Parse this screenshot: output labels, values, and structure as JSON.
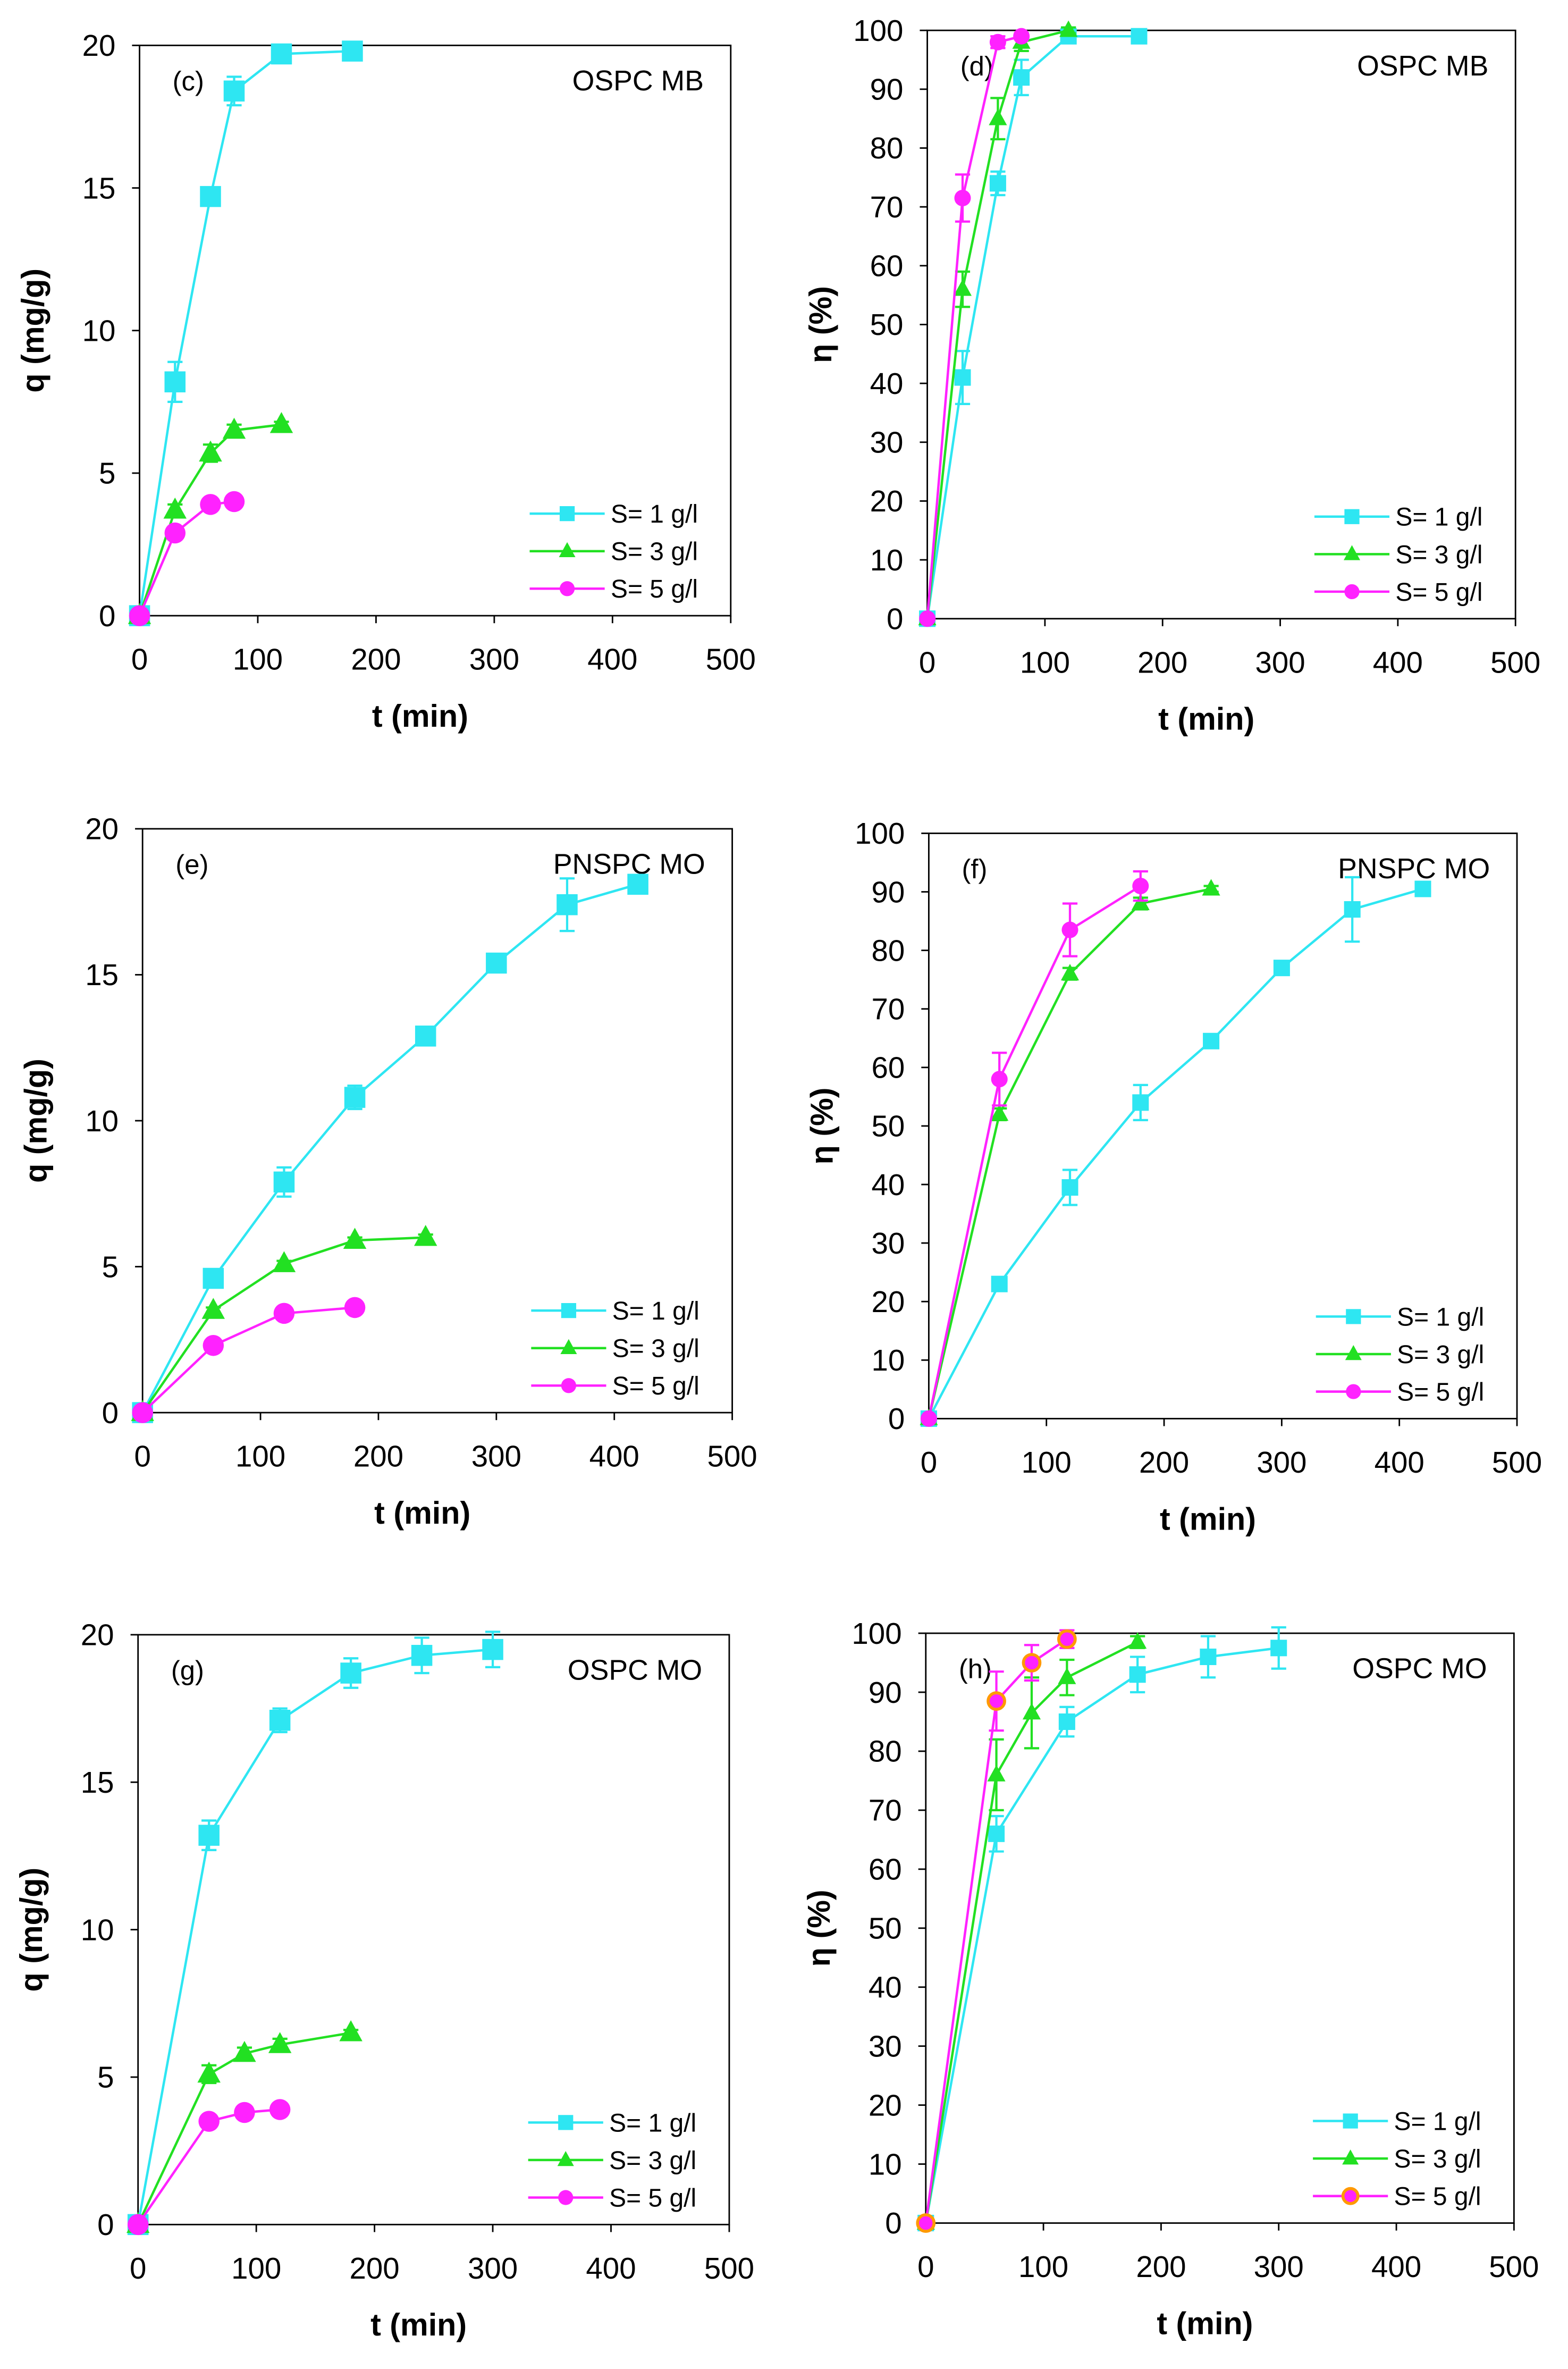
{
  "chart_data": [
    {
      "type": "line",
      "panel": "(c)",
      "title": "OSPC MB",
      "xlabel": "t (min)",
      "ylabel": "q (mg/g)",
      "xlim": [
        0,
        500
      ],
      "ylim": [
        0,
        20
      ],
      "xticks": [
        0,
        100,
        200,
        300,
        400,
        500
      ],
      "yticks": [
        0,
        5,
        10,
        15,
        20
      ],
      "legend": "bottom-right",
      "series": [
        {
          "name": "S= 1 g/l",
          "marker": "square",
          "color": "#2EE6F2",
          "x": [
            0,
            30,
            60,
            80,
            120,
            180
          ],
          "y": [
            0,
            8.2,
            14.7,
            18.4,
            19.7,
            19.8
          ],
          "err": [
            0,
            0.7,
            0.3,
            0.5,
            0.2,
            0.1
          ]
        },
        {
          "name": "S= 3 g/l",
          "marker": "triangle",
          "color": "#22E022",
          "x": [
            0,
            30,
            60,
            80,
            120
          ],
          "y": [
            0,
            3.7,
            5.7,
            6.5,
            6.7
          ],
          "err": [
            0,
            0.2,
            0.3,
            0.2,
            0.1
          ]
        },
        {
          "name": "S= 5 g/l",
          "marker": "circle",
          "color": "#FF22FF",
          "x": [
            0,
            30,
            60,
            80
          ],
          "y": [
            0,
            2.9,
            3.9,
            4.0
          ],
          "err": [
            0,
            0.1,
            0.1,
            0.1
          ]
        }
      ]
    },
    {
      "type": "line",
      "panel": "(d)",
      "title": "OSPC MB",
      "xlabel": "t (min)",
      "ylabel": "η (%)",
      "xlim": [
        0,
        500
      ],
      "ylim": [
        0,
        100
      ],
      "xticks": [
        0,
        100,
        200,
        300,
        400,
        500
      ],
      "yticks": [
        0,
        10,
        20,
        30,
        40,
        50,
        60,
        70,
        80,
        90,
        100
      ],
      "legend": "bottom-right",
      "series": [
        {
          "name": "S= 1 g/l",
          "marker": "square",
          "color": "#2EE6F2",
          "x": [
            0,
            30,
            60,
            80,
            120,
            180
          ],
          "y": [
            0,
            41,
            74,
            92,
            99,
            99
          ],
          "err": [
            0,
            4.5,
            2,
            3,
            1,
            0.5
          ]
        },
        {
          "name": "S= 3 g/l",
          "marker": "triangle",
          "color": "#22E022",
          "x": [
            0,
            30,
            60,
            80,
            120
          ],
          "y": [
            0,
            56,
            85,
            98,
            100
          ],
          "err": [
            0,
            3,
            3.5,
            1.5,
            0.5
          ]
        },
        {
          "name": "S= 5 g/l",
          "marker": "circle",
          "color": "#FF22FF",
          "x": [
            0,
            30,
            60,
            80
          ],
          "y": [
            0,
            71.5,
            98,
            99
          ],
          "err": [
            0,
            4,
            1,
            0.5
          ]
        }
      ]
    },
    {
      "type": "line",
      "panel": "(e)",
      "title": "PNSPC MO",
      "xlabel": "t (min)",
      "ylabel": "q (mg/g)",
      "xlim": [
        0,
        500
      ],
      "ylim": [
        0,
        20
      ],
      "xticks": [
        0,
        100,
        200,
        300,
        400,
        500
      ],
      "yticks": [
        0,
        5,
        10,
        15,
        20
      ],
      "legend": "bottom-right",
      "series": [
        {
          "name": "S= 1 g/l",
          "marker": "square",
          "color": "#2EE6F2",
          "x": [
            0,
            60,
            120,
            180,
            240,
            300,
            360,
            420
          ],
          "y": [
            0,
            4.6,
            7.9,
            10.8,
            12.9,
            15.4,
            17.4,
            18.1
          ],
          "err": [
            0,
            0.2,
            0.5,
            0.4,
            0.1,
            0.1,
            0.9,
            0.1
          ]
        },
        {
          "name": "S= 3 g/l",
          "marker": "triangle",
          "color": "#22E022",
          "x": [
            0,
            60,
            120,
            180,
            240
          ],
          "y": [
            0,
            3.5,
            5.1,
            5.9,
            6.0
          ],
          "err": [
            0,
            0.1,
            0.1,
            0.1,
            0.1
          ]
        },
        {
          "name": "S= 5 g/l",
          "marker": "circle",
          "color": "#FF22FF",
          "x": [
            0,
            60,
            120,
            180
          ],
          "y": [
            0,
            2.3,
            3.4,
            3.6
          ],
          "err": [
            0,
            0.1,
            0.1,
            0.1
          ]
        }
      ]
    },
    {
      "type": "line",
      "panel": "(f)",
      "title": "PNSPC MO",
      "xlabel": "t (min)",
      "ylabel": "η (%)",
      "xlim": [
        0,
        500
      ],
      "ylim": [
        0,
        100
      ],
      "xticks": [
        0,
        100,
        200,
        300,
        400,
        500
      ],
      "yticks": [
        0,
        10,
        20,
        30,
        40,
        50,
        60,
        70,
        80,
        90,
        100
      ],
      "legend": "bottom-right",
      "series": [
        {
          "name": "S= 1 g/l",
          "marker": "square",
          "color": "#2EE6F2",
          "x": [
            0,
            60,
            120,
            180,
            240,
            300,
            360,
            420
          ],
          "y": [
            0,
            23,
            39.5,
            54,
            64.5,
            77,
            87,
            90.5
          ],
          "err": [
            0,
            1,
            3,
            3,
            0.5,
            0.5,
            5.5,
            0.5
          ]
        },
        {
          "name": "S= 3 g/l",
          "marker": "triangle",
          "color": "#22E022",
          "x": [
            0,
            60,
            120,
            180,
            240
          ],
          "y": [
            0,
            52,
            76,
            88,
            90.5
          ],
          "err": [
            0,
            1,
            1,
            1,
            0.5
          ]
        },
        {
          "name": "S= 5 g/l",
          "marker": "circle",
          "color": "#FF22FF",
          "x": [
            0,
            60,
            120,
            180
          ],
          "y": [
            0,
            58,
            83.5,
            91
          ],
          "err": [
            0,
            4.5,
            4.5,
            2.5
          ]
        }
      ]
    },
    {
      "type": "line",
      "panel": "(g)",
      "title": "OSPC MO",
      "xlabel": "t (min)",
      "ylabel": "q (mg/g)",
      "xlim": [
        0,
        500
      ],
      "ylim": [
        0,
        20
      ],
      "xticks": [
        0,
        100,
        200,
        300,
        400,
        500
      ],
      "yticks": [
        0,
        5,
        10,
        15,
        20
      ],
      "legend": "bottom-right",
      "series": [
        {
          "name": "S= 1 g/l",
          "marker": "square",
          "color": "#2EE6F2",
          "x": [
            0,
            60,
            120,
            180,
            240,
            300
          ],
          "y": [
            0,
            13.2,
            17.1,
            18.7,
            19.3,
            19.5
          ],
          "err": [
            0,
            0.5,
            0.4,
            0.5,
            0.6,
            0.6
          ]
        },
        {
          "name": "S= 3 g/l",
          "marker": "triangle",
          "color": "#22E022",
          "x": [
            0,
            60,
            90,
            120,
            180
          ],
          "y": [
            0,
            5.1,
            5.8,
            6.1,
            6.5
          ],
          "err": [
            0,
            0.3,
            0.2,
            0.2,
            0.1
          ]
        },
        {
          "name": "S= 5 g/l",
          "marker": "circle",
          "color": "#FF22FF",
          "x": [
            0,
            60,
            90,
            120
          ],
          "y": [
            0,
            3.5,
            3.8,
            3.9
          ],
          "err": [
            0,
            0.1,
            0.1,
            0.1
          ]
        }
      ]
    },
    {
      "type": "line",
      "panel": "(h)",
      "title": "OSPC MO",
      "xlabel": "t (min)",
      "ylabel": "η (%)",
      "xlim": [
        0,
        500
      ],
      "ylim": [
        0,
        100
      ],
      "xticks": [
        0,
        100,
        200,
        300,
        400,
        500
      ],
      "yticks": [
        0,
        10,
        20,
        30,
        40,
        50,
        60,
        70,
        80,
        90,
        100
      ],
      "legend": "bottom-right",
      "series": [
        {
          "name": "S= 1 g/l",
          "marker": "square",
          "color": "#2EE6F2",
          "x": [
            0,
            60,
            120,
            180,
            240,
            300
          ],
          "y": [
            0,
            66,
            85,
            93,
            96,
            97.5
          ],
          "err": [
            0,
            3,
            2.5,
            3,
            3.5,
            3.5
          ]
        },
        {
          "name": "S= 3 g/l",
          "marker": "triangle",
          "color": "#22E022",
          "x": [
            0,
            60,
            90,
            120,
            180
          ],
          "y": [
            0,
            76,
            86.5,
            92.5,
            98.5
          ],
          "err": [
            0,
            6,
            6,
            3,
            1
          ]
        },
        {
          "name": "S= 5 g/l",
          "marker": "circle",
          "color": "#FF22FF",
          "edge": "#FF9900",
          "x": [
            0,
            60,
            90,
            120
          ],
          "y": [
            0,
            88.5,
            95,
            99
          ],
          "err": [
            0,
            5,
            3,
            1.5
          ]
        }
      ]
    }
  ]
}
